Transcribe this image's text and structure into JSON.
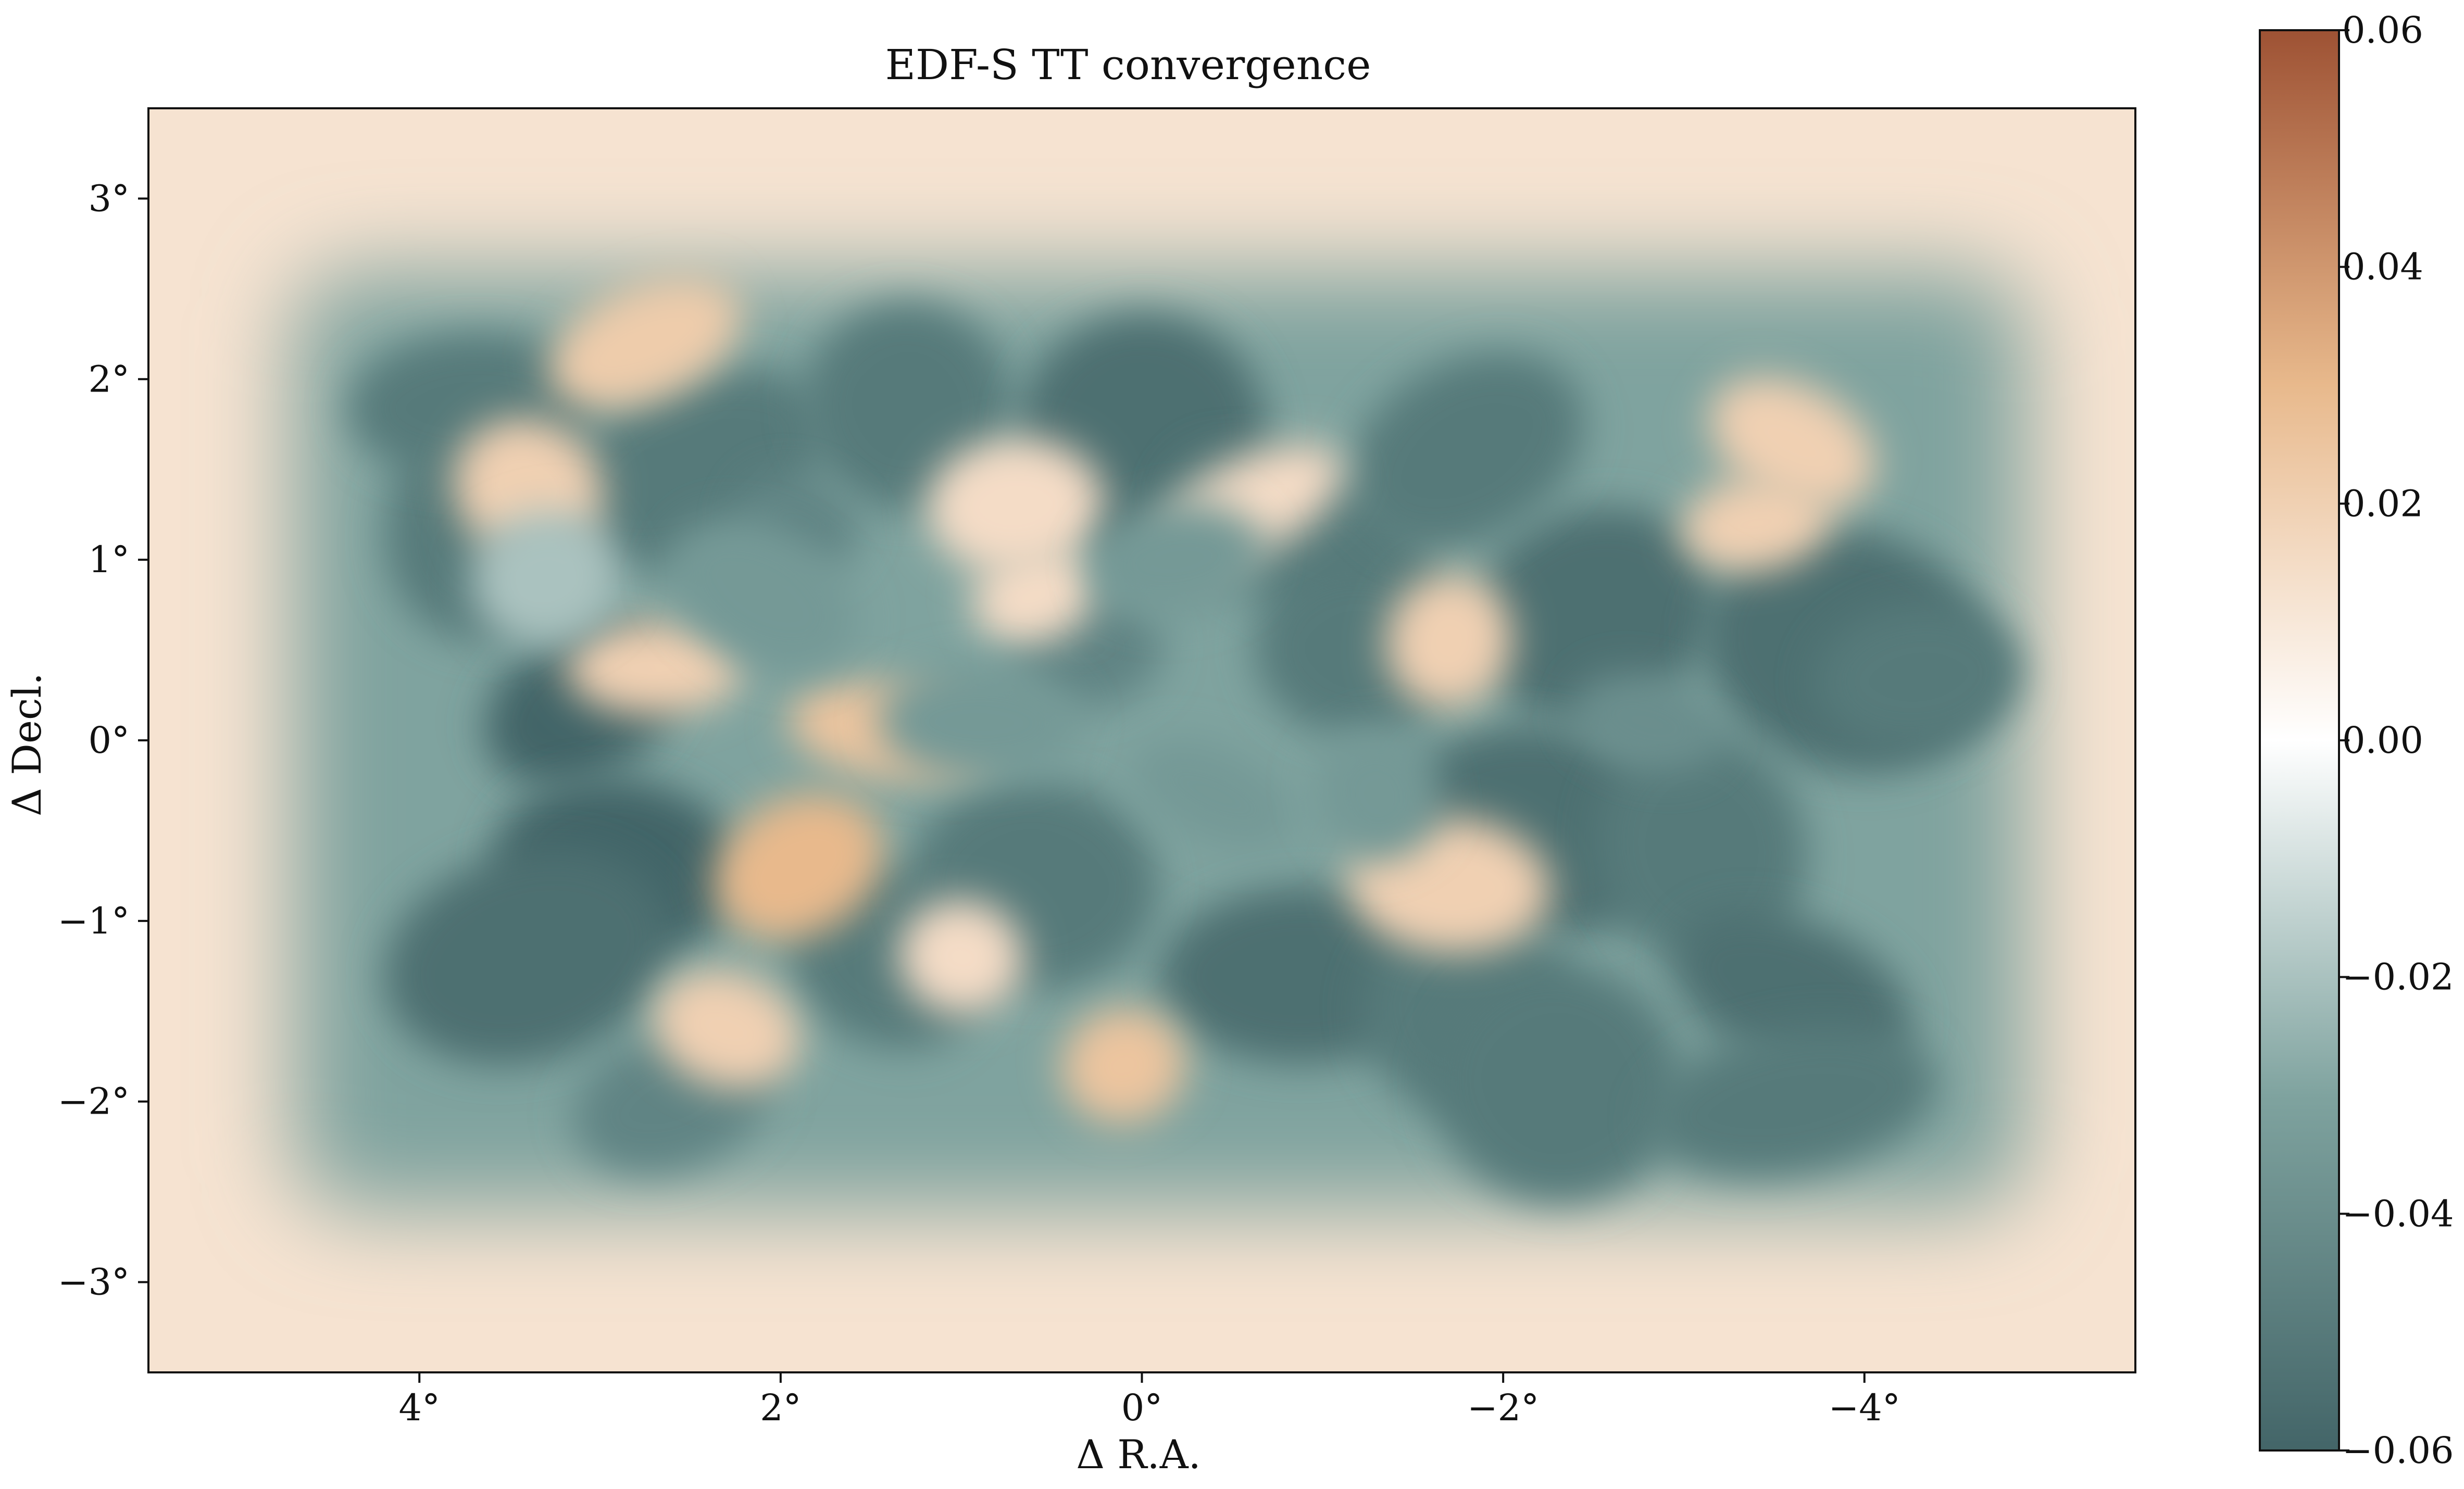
{
  "chart_data": {
    "type": "heatmap",
    "title": "EDF-S TT convergence",
    "xlabel": "Δ R.A.",
    "ylabel": "Δ Decl.",
    "xlim": [
      5.5,
      -5.5
    ],
    "ylim": [
      -3.5,
      3.5
    ],
    "x_ticks": [
      4,
      2,
      0,
      -2,
      -4
    ],
    "x_tick_labels": [
      "4°",
      "2°",
      "0°",
      "−2°",
      "−4°"
    ],
    "y_ticks": [
      3,
      2,
      1,
      0,
      -1,
      -2,
      -3
    ],
    "y_tick_labels": [
      "3°",
      "2°",
      "1°",
      "0°",
      "−1°",
      "−2°",
      "−3°"
    ],
    "colorbar": {
      "range": [
        -0.06,
        0.06
      ],
      "ticks": [
        0.06,
        0.04,
        0.02,
        0.0,
        -0.02,
        -0.04,
        -0.06
      ],
      "tick_labels": [
        "0.06",
        "0.04",
        "0.02",
        "0.00",
        "−0.02",
        "−0.04",
        "−0.06"
      ],
      "colors": [
        "#436568",
        "#7fa39f",
        "#ffffff",
        "#e8b98c",
        "#9e5234"
      ]
    },
    "field": {
      "footprint_x": [
        -4.9,
        4.7
      ],
      "footprint_y": [
        -2.6,
        2.6
      ],
      "inside_level": -0.03,
      "outside_level": 0.012
    },
    "regions": [
      {
        "x": 3.1,
        "y": 0.2,
        "value": -0.06
      },
      {
        "x": 2.9,
        "y": -0.7,
        "value": -0.06
      },
      {
        "x": 3.4,
        "y": -1.2,
        "value": -0.055
      },
      {
        "x": 3.6,
        "y": 1.2,
        "value": -0.05
      },
      {
        "x": 3.7,
        "y": 1.85,
        "value": -0.05
      },
      {
        "x": 2.5,
        "y": 1.5,
        "value": -0.05
      },
      {
        "x": 1.3,
        "y": 1.85,
        "value": -0.05
      },
      {
        "x": 0.0,
        "y": 1.7,
        "value": -0.055
      },
      {
        "x": -0.9,
        "y": 1.1,
        "value": -0.05
      },
      {
        "x": -1.2,
        "y": 0.5,
        "value": -0.05
      },
      {
        "x": -2.5,
        "y": 0.7,
        "value": -0.055
      },
      {
        "x": -3.9,
        "y": 0.5,
        "value": -0.055
      },
      {
        "x": -4.3,
        "y": 0.35,
        "value": -0.05
      },
      {
        "x": -1.8,
        "y": 1.6,
        "value": -0.05
      },
      {
        "x": -2.2,
        "y": -0.5,
        "value": -0.055
      },
      {
        "x": -3.1,
        "y": -0.6,
        "value": -0.05
      },
      {
        "x": -3.6,
        "y": -1.4,
        "value": -0.055
      },
      {
        "x": -0.9,
        "y": -1.3,
        "value": -0.055
      },
      {
        "x": -1.8,
        "y": -1.5,
        "value": -0.05
      },
      {
        "x": -2.3,
        "y": -1.9,
        "value": -0.05
      },
      {
        "x": -3.6,
        "y": -2.0,
        "value": -0.05
      },
      {
        "x": 1.4,
        "y": -1.2,
        "value": -0.05
      },
      {
        "x": 0.6,
        "y": -0.8,
        "value": -0.05
      },
      {
        "x": 2.6,
        "y": -2.0,
        "value": -0.045
      },
      {
        "x": 1.9,
        "y": 1.2,
        "value": -0.045
      },
      {
        "x": 0.3,
        "y": 0.5,
        "value": -0.045
      },
      {
        "x": 1.9,
        "y": -0.7,
        "value": 0.03
      },
      {
        "x": 1.4,
        "y": 0.05,
        "value": 0.025
      },
      {
        "x": 0.1,
        "y": -1.8,
        "value": 0.025
      },
      {
        "x": 3.4,
        "y": 1.4,
        "value": 0.02
      },
      {
        "x": 2.7,
        "y": 0.4,
        "value": 0.02
      },
      {
        "x": 2.75,
        "y": 2.2,
        "value": 0.022
      },
      {
        "x": -1.7,
        "y": 0.55,
        "value": 0.02
      },
      {
        "x": -3.4,
        "y": 1.2,
        "value": 0.02
      },
      {
        "x": -3.6,
        "y": 1.65,
        "value": 0.02
      },
      {
        "x": -1.7,
        "y": -0.8,
        "value": 0.02
      },
      {
        "x": 0.6,
        "y": 0.8,
        "value": 0.015
      },
      {
        "x": 2.3,
        "y": -1.6,
        "value": 0.02
      },
      {
        "x": 0.7,
        "y": 1.3,
        "value": 0.015
      },
      {
        "x": -0.6,
        "y": 1.3,
        "value": 0.015
      },
      {
        "x": 1.0,
        "y": -1.2,
        "value": 0.015
      },
      {
        "x": 3.3,
        "y": 0.9,
        "value": -0.02
      },
      {
        "x": -0.4,
        "y": -0.3,
        "value": -0.035
      },
      {
        "x": 0.9,
        "y": 0.1,
        "value": -0.035
      },
      {
        "x": -1.3,
        "y": -0.3,
        "value": -0.035
      },
      {
        "x": -2.8,
        "y": 0.1,
        "value": -0.04
      },
      {
        "x": -0.2,
        "y": 1.0,
        "value": -0.035
      },
      {
        "x": 2.1,
        "y": 0.8,
        "value": -0.035
      }
    ]
  }
}
